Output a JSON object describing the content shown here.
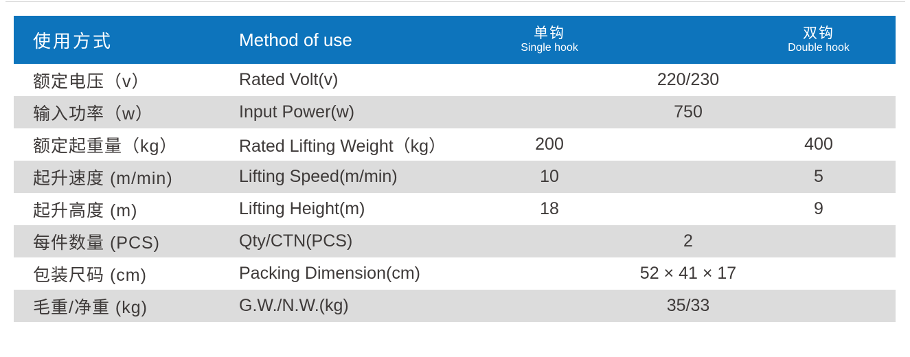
{
  "colors": {
    "header_bg": "#0d74bc",
    "stripe_bg": "#dcdcdc",
    "text": "#3e3a39",
    "header_text": "#ffffff"
  },
  "header": {
    "label_zh": "使用方式",
    "label_en": "Method of use",
    "single": {
      "zh": "单钩",
      "en": "Single hook"
    },
    "double": {
      "zh": "双钩",
      "en": "Double hook"
    }
  },
  "rows": [
    {
      "zh": "额定电压（v）",
      "en": "Rated Volt(v)",
      "span": "220/230"
    },
    {
      "zh": "输入功率（w）",
      "en": "Input Power(w)",
      "span": "750"
    },
    {
      "zh": "额定起重量（kg）",
      "en": "Rated Lifting Weight（kg）",
      "single": "200",
      "double": "400"
    },
    {
      "zh": "起升速度 (m/min)",
      "en": "Lifting Speed(m/min)",
      "single": "10",
      "double": "5"
    },
    {
      "zh": "起升高度 (m)",
      "en": "Lifting Height(m)",
      "single": "18",
      "double": "9"
    },
    {
      "zh": "每件数量 (PCS)",
      "en": "Qty/CTN(PCS)",
      "span": "2"
    },
    {
      "zh": "包装尺码 (cm)",
      "en": "Packing Dimension(cm)",
      "span": "52 × 41 × 17"
    },
    {
      "zh": "毛重/净重 (kg)",
      "en": "G.W./N.W.(kg)",
      "span": "35/33"
    }
  ]
}
